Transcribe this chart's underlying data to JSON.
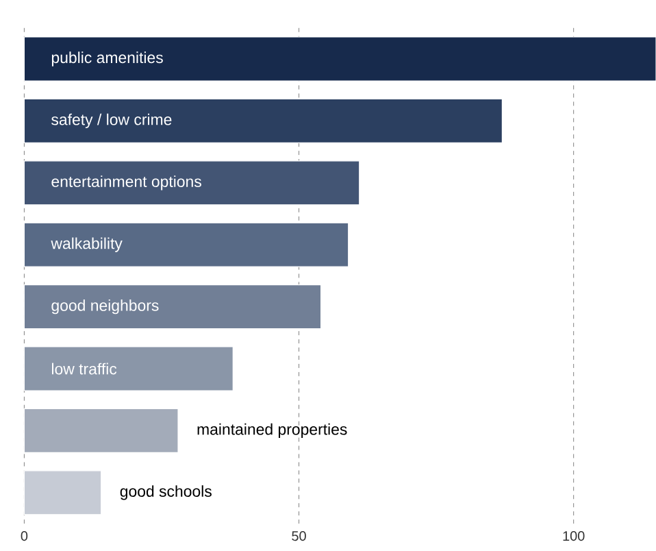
{
  "chart_data": {
    "type": "bar",
    "orientation": "horizontal",
    "categories": [
      "public amenities",
      "safety / low crime",
      "entertainment options",
      "walkability",
      "good neighbors",
      "low traffic",
      "maintained properties",
      "good schools"
    ],
    "values": [
      115,
      87,
      61,
      59,
      54,
      38,
      28,
      14
    ],
    "colors": [
      "#172a4c",
      "#2b3f60",
      "#435574",
      "#586a86",
      "#717f96",
      "#8a96a8",
      "#a3abb9",
      "#c6cbd5"
    ],
    "xlim": [
      0,
      115
    ],
    "xticks": [
      0,
      50,
      100
    ],
    "grid": "x"
  }
}
